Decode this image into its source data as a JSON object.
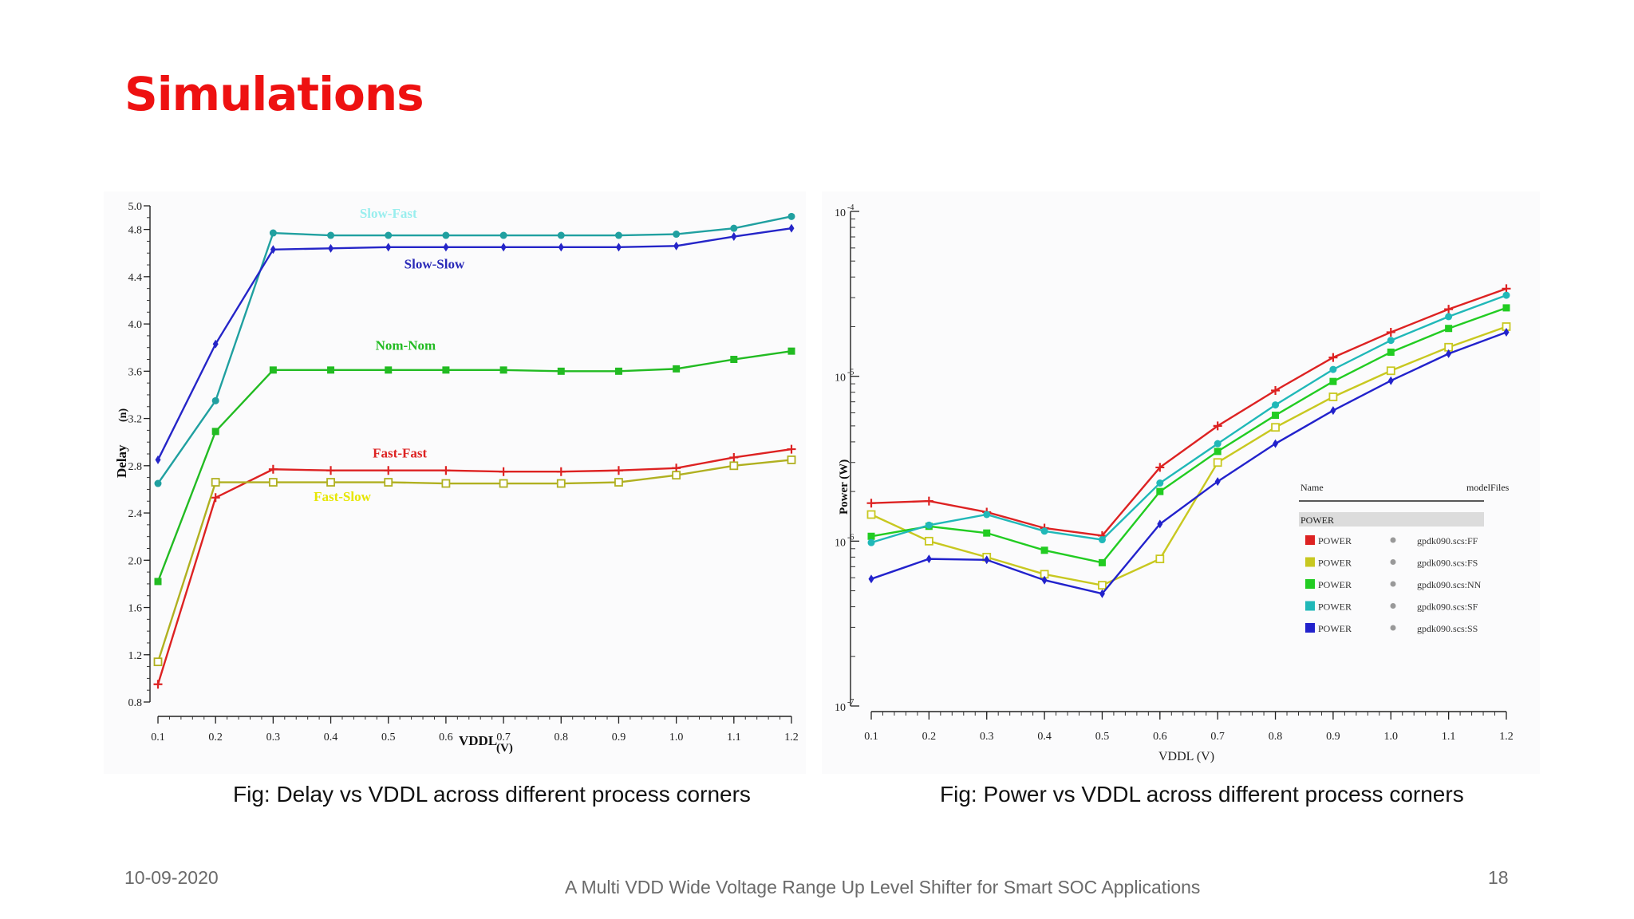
{
  "slide": {
    "title": "Simulations",
    "caption_left": "Fig: Delay vs VDDL across different process corners",
    "caption_right": "Fig: Power vs VDDL across different process corners",
    "footer_date": "10-09-2020",
    "footer_text": "A Multi VDD Wide Voltage Range Up Level Shifter for Smart SOC Applications",
    "page_number": "18"
  },
  "chart_data": [
    {
      "type": "line",
      "title": "",
      "xlabel": "VDDL",
      "xlabel_unit": "(V)",
      "ylabel": "Delay",
      "ylabel_unit": "(n)",
      "xlim": [
        0.1,
        1.2
      ],
      "ylim": [
        0.8,
        5.0
      ],
      "x_ticks": [
        "0.1",
        "0.2",
        "0.3",
        "0.4",
        "0.5",
        "0.6",
        "0.7",
        "0.8",
        "0.9",
        "1.0",
        "1.1",
        "1.2"
      ],
      "y_ticks": [
        "0.8",
        "1.2",
        "1.6",
        "2.0",
        "2.4",
        "2.8",
        "3.2",
        "3.6",
        "4.0",
        "4.4",
        "4.8",
        "5.0"
      ],
      "grid": false,
      "x": [
        0.1,
        0.2,
        0.3,
        0.4,
        0.5,
        0.6,
        0.7,
        0.8,
        0.9,
        1.0,
        1.1,
        1.2
      ],
      "series": [
        {
          "name": "Slow-Fast",
          "color": "#20a0a0",
          "label_color": "#99eeee",
          "marker": "circle",
          "values": [
            2.65,
            3.35,
            4.77,
            4.75,
            4.75,
            4.75,
            4.75,
            4.75,
            4.75,
            4.76,
            4.81,
            4.91
          ]
        },
        {
          "name": "Slow-Slow",
          "color": "#2525c8",
          "label_color": "#2a2ab8",
          "marker": "diamond",
          "values": [
            2.85,
            3.83,
            4.63,
            4.64,
            4.65,
            4.65,
            4.65,
            4.65,
            4.65,
            4.66,
            4.74,
            4.81
          ]
        },
        {
          "name": "Nom-Nom",
          "color": "#22bb22",
          "label_color": "#22bb22",
          "marker": "square",
          "values": [
            1.82,
            3.09,
            3.61,
            3.61,
            3.61,
            3.61,
            3.61,
            3.6,
            3.6,
            3.62,
            3.7,
            3.77
          ]
        },
        {
          "name": "Fast-Fast",
          "color": "#dd2222",
          "label_color": "#dd2222",
          "marker": "plus",
          "values": [
            0.95,
            2.53,
            2.77,
            2.76,
            2.76,
            2.76,
            2.75,
            2.75,
            2.76,
            2.78,
            2.87,
            2.94
          ]
        },
        {
          "name": "Fast-Slow",
          "color": "#b0b020",
          "label_color": "#e6e600",
          "marker": "open-square",
          "values": [
            1.14,
            2.66,
            2.66,
            2.66,
            2.66,
            2.65,
            2.65,
            2.65,
            2.66,
            2.72,
            2.8,
            2.85
          ]
        }
      ]
    },
    {
      "type": "line",
      "title": "",
      "xlabel": "VDDL",
      "xlabel_unit": "(V)",
      "ylabel": "Power (W)",
      "xlim": [
        0.1,
        1.2
      ],
      "ylim": [
        1e-07,
        0.0001
      ],
      "yscale": "log",
      "x_ticks": [
        "0.1",
        "0.2",
        "0.3",
        "0.4",
        "0.5",
        "0.6",
        "0.7",
        "0.8",
        "0.9",
        "1.0",
        "1.1",
        "1.2"
      ],
      "y_tick_labels": [
        {
          "base": "10",
          "exp": "-4",
          "value": 0.0001
        },
        {
          "base": "10",
          "exp": "-5",
          "value": 1e-05
        },
        {
          "base": "10",
          "exp": "-6",
          "value": 1e-06
        },
        {
          "base": "10",
          "exp": "-7",
          "value": 1e-07
        }
      ],
      "grid": false,
      "x": [
        0.1,
        0.2,
        0.3,
        0.4,
        0.5,
        0.6,
        0.7,
        0.8,
        0.9,
        1.0,
        1.1,
        1.2
      ],
      "series": [
        {
          "name": "POWER",
          "model": "gpdk090.scs:FF",
          "color": "#dd2222",
          "marker": "plus",
          "values": [
            1.7e-06,
            1.75e-06,
            1.5e-06,
            1.2e-06,
            1.08e-06,
            2.8e-06,
            5e-06,
            8.2e-06,
            1.3e-05,
            1.85e-05,
            2.55e-05,
            3.4e-05
          ]
        },
        {
          "name": "POWER",
          "model": "gpdk090.scs:FS",
          "color": "#c8c820",
          "marker": "open-square",
          "values": [
            1.45e-06,
            1e-06,
            8e-07,
            6.3e-07,
            5.4e-07,
            7.8e-07,
            3e-06,
            4.9e-06,
            7.5e-06,
            1.08e-05,
            1.5e-05,
            2e-05
          ]
        },
        {
          "name": "POWER",
          "model": "gpdk090.scs:NN",
          "color": "#22cc22",
          "marker": "square",
          "values": [
            1.07e-06,
            1.23e-06,
            1.12e-06,
            8.8e-07,
            7.4e-07,
            2e-06,
            3.5e-06,
            5.8e-06,
            9.3e-06,
            1.4e-05,
            1.95e-05,
            2.6e-05
          ]
        },
        {
          "name": "POWER",
          "model": "gpdk090.scs:SF",
          "color": "#20b8b8",
          "marker": "circle",
          "values": [
            9.8e-07,
            1.25e-06,
            1.45e-06,
            1.15e-06,
            1.02e-06,
            2.25e-06,
            3.9e-06,
            6.7e-06,
            1.1e-05,
            1.65e-05,
            2.3e-05,
            3.1e-05
          ]
        },
        {
          "name": "POWER",
          "model": "gpdk090.scs:SS",
          "color": "#2222cc",
          "marker": "diamond",
          "values": [
            5.9e-07,
            7.8e-07,
            7.7e-07,
            5.8e-07,
            4.8e-07,
            1.27e-06,
            2.3e-06,
            3.9e-06,
            6.2e-06,
            9.4e-06,
            1.37e-05,
            1.85e-05
          ]
        }
      ],
      "legend": {
        "position": "lower-right",
        "header_name": "Name",
        "header_model": "modelFiles",
        "group_label": "POWER"
      }
    }
  ]
}
